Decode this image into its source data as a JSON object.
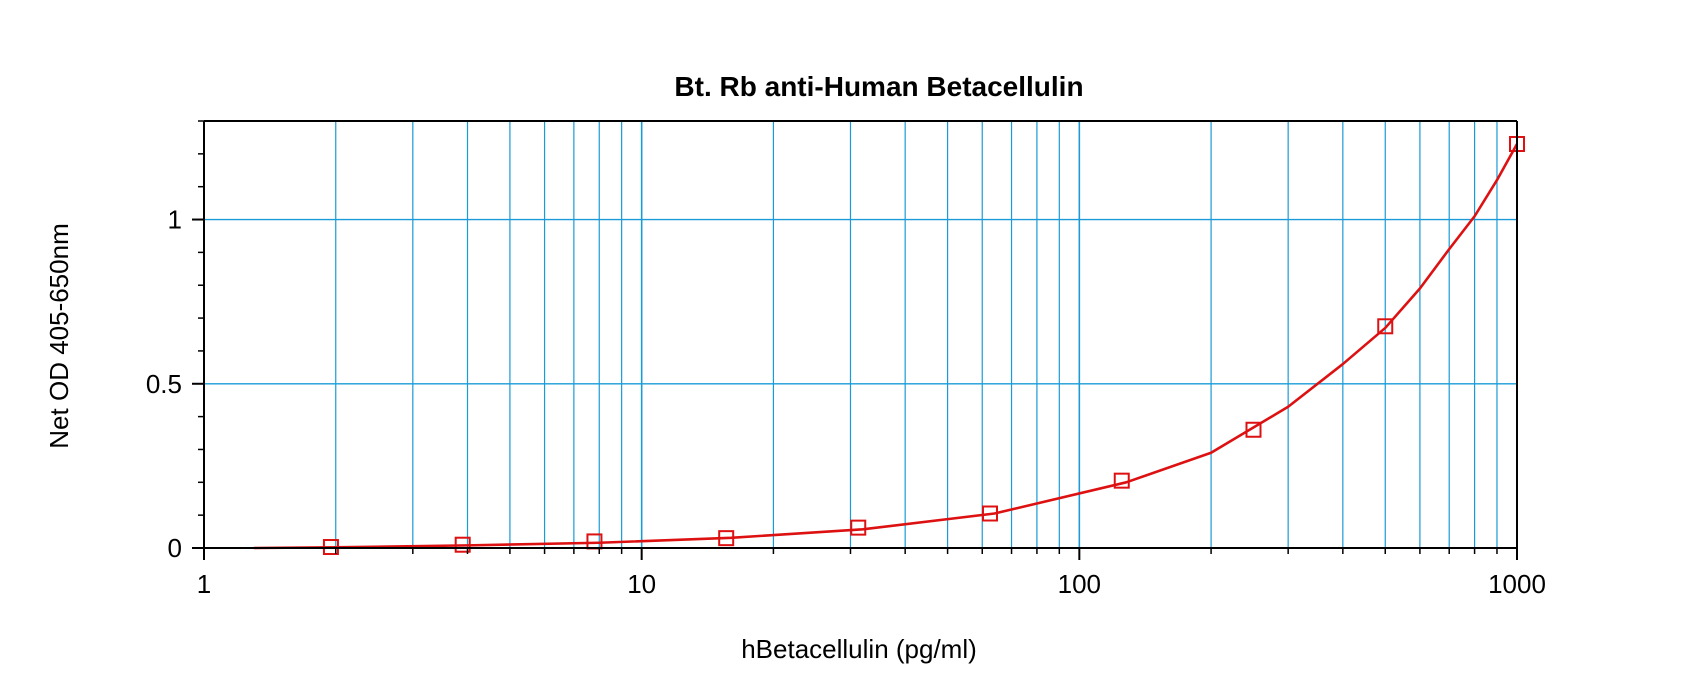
{
  "chart_data": {
    "type": "scatter",
    "title": "Bt. Rb anti-Human Betacellulin",
    "xlabel": "hBetacellulin (pg/ml)",
    "ylabel": "Net OD 405-650nm",
    "x_scale": "log",
    "xlim": [
      1,
      1000
    ],
    "ylim": [
      0,
      1.3
    ],
    "x_ticks": [
      {
        "value": 1,
        "label": "1"
      },
      {
        "value": 10,
        "label": "10"
      },
      {
        "value": 100,
        "label": "100"
      },
      {
        "value": 1000,
        "label": "1000"
      }
    ],
    "y_ticks": [
      {
        "value": 0,
        "label": "0"
      },
      {
        "value": 0.5,
        "label": "0.5"
      },
      {
        "value": 1,
        "label": "1"
      }
    ],
    "grid": true,
    "series": [
      {
        "marker": "square",
        "x": [
          1.95,
          3.9,
          7.8,
          15.6,
          31.25,
          62.5,
          125,
          250,
          500,
          1000
        ],
        "y": [
          0.003,
          0.01,
          0.02,
          0.03,
          0.062,
          0.105,
          0.205,
          0.36,
          0.675,
          1.23
        ]
      }
    ],
    "fit_curve": {
      "x": [
        1.3,
        2,
        4,
        8,
        16,
        32,
        64,
        128,
        200,
        300,
        400,
        500,
        600,
        700,
        800,
        900,
        1000
      ],
      "y": [
        0.0,
        0.002,
        0.008,
        0.016,
        0.031,
        0.057,
        0.105,
        0.2,
        0.29,
        0.43,
        0.56,
        0.67,
        0.79,
        0.91,
        1.01,
        1.12,
        1.23
      ]
    },
    "colors": {
      "series": "#dd1111",
      "grid": "#1a9bd7",
      "axis": "#000000"
    }
  }
}
